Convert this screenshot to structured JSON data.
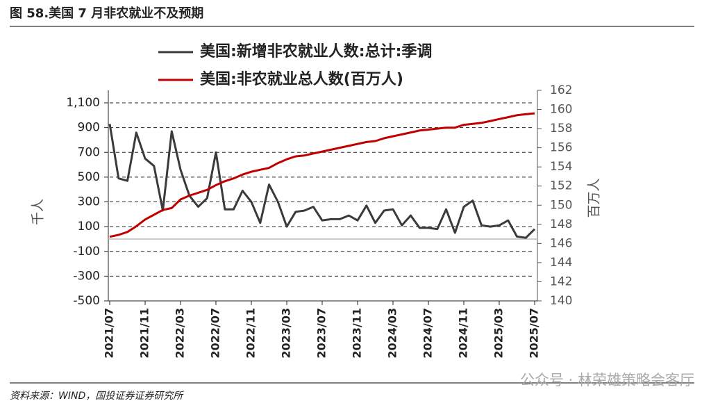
{
  "chart_data": {
    "type": "line",
    "title": "图 58.美国 7 月非农就业不及预期",
    "source": "资料来源：WIND，国投证券证券研究所",
    "watermark": "公众号 · 林荣雄策略会客厅",
    "y_label": "千人",
    "y2_label": "百万人",
    "categories": [
      "2021/07",
      null,
      null,
      null,
      "2021/11",
      null,
      null,
      null,
      "2022/03",
      null,
      null,
      null,
      "2022/07",
      null,
      null,
      null,
      "2022/11",
      null,
      null,
      null,
      "2023/03",
      null,
      null,
      null,
      "2023/07",
      null,
      null,
      null,
      "2023/11",
      null,
      null,
      null,
      "2024/03",
      null,
      null,
      null,
      "2024/07",
      null,
      null,
      null,
      "2024/11",
      null,
      null,
      null,
      "2025/03",
      null,
      null,
      null,
      "2025/07"
    ],
    "series": [
      {
        "name": "美国:新增非农就业人数:总计:季调",
        "color": "#3a3a3a",
        "axis": "y",
        "values": [
          930,
          490,
          470,
          860,
          650,
          590,
          230,
          870,
          560,
          350,
          260,
          330,
          700,
          240,
          240,
          390,
          300,
          130,
          440,
          300,
          100,
          220,
          230,
          260,
          150,
          160,
          160,
          190,
          150,
          270,
          130,
          230,
          240,
          110,
          190,
          90,
          90,
          80,
          240,
          50,
          260,
          310,
          110,
          100,
          110,
          150,
          20,
          10,
          80
        ]
      },
      {
        "name": "美国:非农就业总人数(百万人)",
        "color": "#c00000",
        "axis": "y2",
        "values": [
          146.7,
          146.9,
          147.2,
          147.8,
          148.5,
          149.0,
          149.5,
          149.7,
          150.6,
          151.0,
          151.3,
          151.6,
          152.1,
          152.5,
          152.8,
          153.2,
          153.5,
          153.7,
          153.9,
          154.4,
          154.8,
          155.1,
          155.2,
          155.4,
          155.6,
          155.8,
          156.0,
          156.2,
          156.4,
          156.6,
          156.7,
          157.0,
          157.2,
          157.4,
          157.6,
          157.8,
          157.9,
          158.0,
          158.1,
          158.1,
          158.4,
          158.5,
          158.6,
          158.8,
          159.0,
          159.2,
          159.4,
          159.5,
          159.6
        ]
      }
    ],
    "ylim": [
      -500,
      1100
    ],
    "yticks": [
      -500,
      -300,
      -100,
      100,
      300,
      500,
      700,
      900,
      {
        "value": 1100,
        "label": "1,100"
      }
    ],
    "y2lim": [
      140,
      162
    ],
    "y2ticks": [
      140,
      142,
      144,
      146,
      148,
      150,
      152,
      154,
      156,
      158,
      160,
      162
    ],
    "grid": true
  }
}
